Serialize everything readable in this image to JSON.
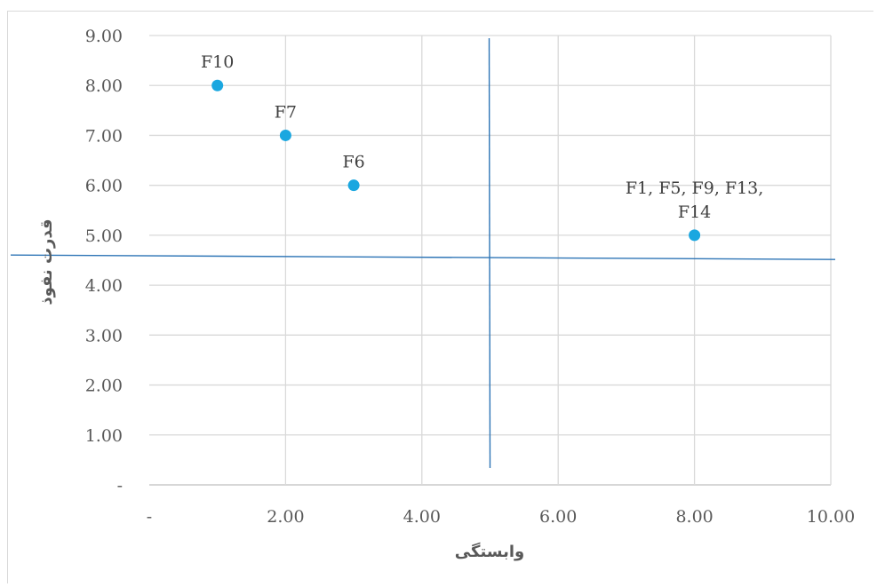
{
  "chart_data": {
    "type": "scatter",
    "xlabel": "وابستگی",
    "ylabel": "قدرت نفوذ",
    "xlim": [
      0,
      10
    ],
    "ylim": [
      0,
      9
    ],
    "x_ticks": [
      {
        "value": 0,
        "label": "-"
      },
      {
        "value": 2,
        "label": "2.00"
      },
      {
        "value": 4,
        "label": "4.00"
      },
      {
        "value": 6,
        "label": "6.00"
      },
      {
        "value": 8,
        "label": "8.00"
      },
      {
        "value": 10,
        "label": "10.00"
      }
    ],
    "y_ticks": [
      {
        "value": 0,
        "label": "-"
      },
      {
        "value": 1,
        "label": "1.00"
      },
      {
        "value": 2,
        "label": "2.00"
      },
      {
        "value": 3,
        "label": "3.00"
      },
      {
        "value": 4,
        "label": "4.00"
      },
      {
        "value": 5,
        "label": "5.00"
      },
      {
        "value": 6,
        "label": "6.00"
      },
      {
        "value": 7,
        "label": "7.00"
      },
      {
        "value": 8,
        "label": "8.00"
      },
      {
        "value": 9,
        "label": "9.00"
      }
    ],
    "points": [
      {
        "x": 1,
        "y": 8,
        "label": [
          "F10"
        ]
      },
      {
        "x": 2,
        "y": 7,
        "label": [
          "F7"
        ]
      },
      {
        "x": 3,
        "y": 6,
        "label": [
          "F6"
        ]
      },
      {
        "x": 8,
        "y": 5,
        "label": [
          "F1, F5, F9, F13,",
          "F14"
        ]
      }
    ],
    "divider_lines": [
      {
        "orientation": "vertical",
        "value": 5
      },
      {
        "orientation": "horizontal",
        "value": 4.55
      }
    ],
    "grid": true,
    "colors": {
      "point": "#1aa7e0",
      "divider": "#2e75b6",
      "grid": "#d9d9d9"
    }
  }
}
